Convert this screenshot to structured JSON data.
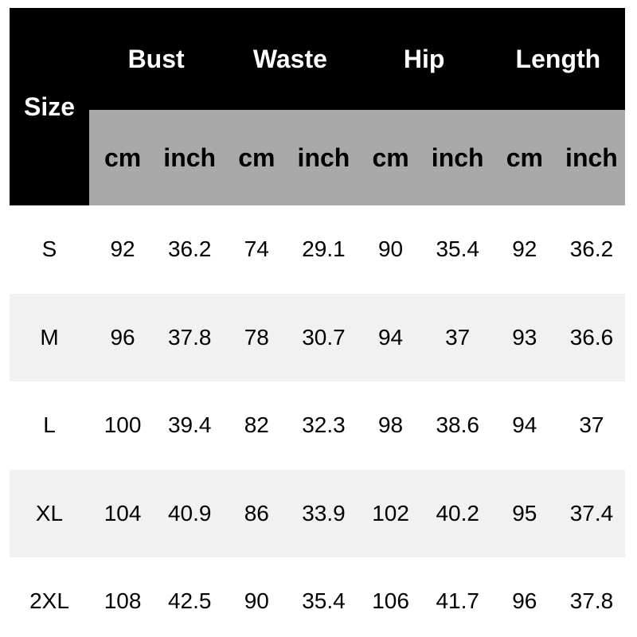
{
  "chart_data": {
    "type": "table",
    "corner_header": "Size",
    "group_headers": [
      "Bust",
      "Waste",
      "Hip",
      "Length"
    ],
    "unit_headers": [
      "cm",
      "inch",
      "cm",
      "inch",
      "cm",
      "inch",
      "cm",
      "inch"
    ],
    "rows": [
      {
        "size": "S",
        "values": [
          92,
          36.2,
          74,
          29.1,
          90,
          35.4,
          92,
          36.2
        ]
      },
      {
        "size": "M",
        "values": [
          96,
          37.8,
          78,
          30.7,
          94,
          37,
          93,
          36.6
        ]
      },
      {
        "size": "L",
        "values": [
          100,
          39.4,
          82,
          32.3,
          98,
          38.6,
          94,
          37
        ]
      },
      {
        "size": "XL",
        "values": [
          104,
          40.9,
          86,
          33.9,
          102,
          40.2,
          95,
          37.4
        ]
      },
      {
        "size": "2XL",
        "values": [
          108,
          42.5,
          90,
          35.4,
          106,
          41.7,
          96,
          37.8
        ]
      }
    ],
    "colors": {
      "header_bg": "#000000",
      "header_text": "#ffffff",
      "unit_band_bg": "#a9a9a9",
      "unit_text": "#000000",
      "row_bg": "#ffffff",
      "row_alt_bg": "#f1f1f1",
      "data_text": "#000000",
      "page_bg": "#ffffff"
    }
  }
}
